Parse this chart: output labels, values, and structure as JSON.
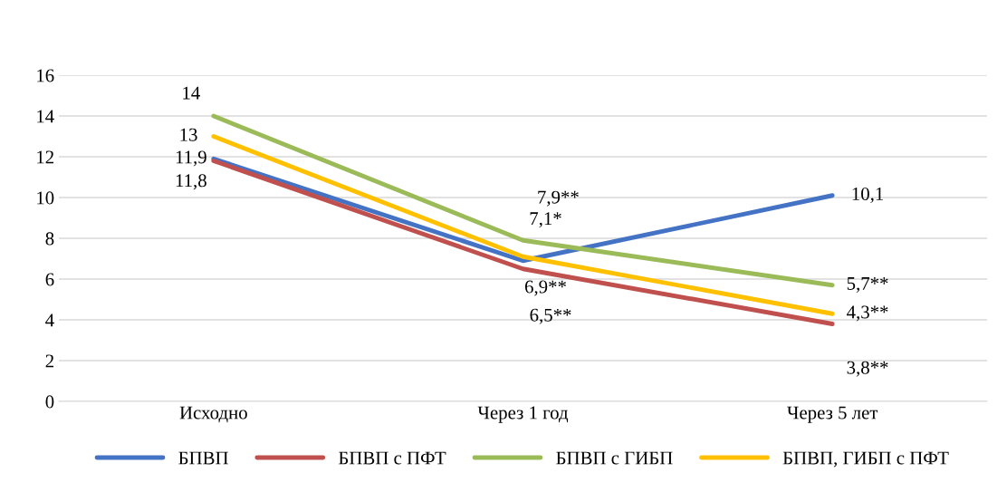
{
  "chart_data": {
    "type": "line",
    "categories": [
      "Исходно",
      "Через 1 год",
      "Через 5 лет"
    ],
    "series": [
      {
        "name": "БПВП",
        "color": "#4472c4",
        "values": [
          11.9,
          6.9,
          10.1
        ],
        "value_labels": [
          "11,9",
          "6,9**",
          "10,1"
        ]
      },
      {
        "name": "БПВП с ПФТ",
        "color": "#c0504d",
        "values": [
          11.8,
          6.5,
          3.8
        ],
        "value_labels": [
          "11,8",
          "6,5**",
          "3,8**"
        ]
      },
      {
        "name": "БПВП с ГИБП",
        "color": "#9bbb59",
        "values": [
          14,
          7.9,
          5.7
        ],
        "value_labels": [
          "14",
          "7,9**",
          "5,7**"
        ]
      },
      {
        "name": "БПВП, ГИБП с ПФТ",
        "color": "#ffc000",
        "values": [
          13,
          7.1,
          4.3
        ],
        "value_labels": [
          "13",
          "7,1*",
          "4,3**"
        ]
      }
    ],
    "ylim": [
      0,
      16
    ],
    "yticks": [
      0,
      2,
      4,
      6,
      8,
      10,
      12,
      14,
      16
    ],
    "grid": "y",
    "legend": "bottom",
    "marker": "none",
    "line_style": "solid"
  }
}
